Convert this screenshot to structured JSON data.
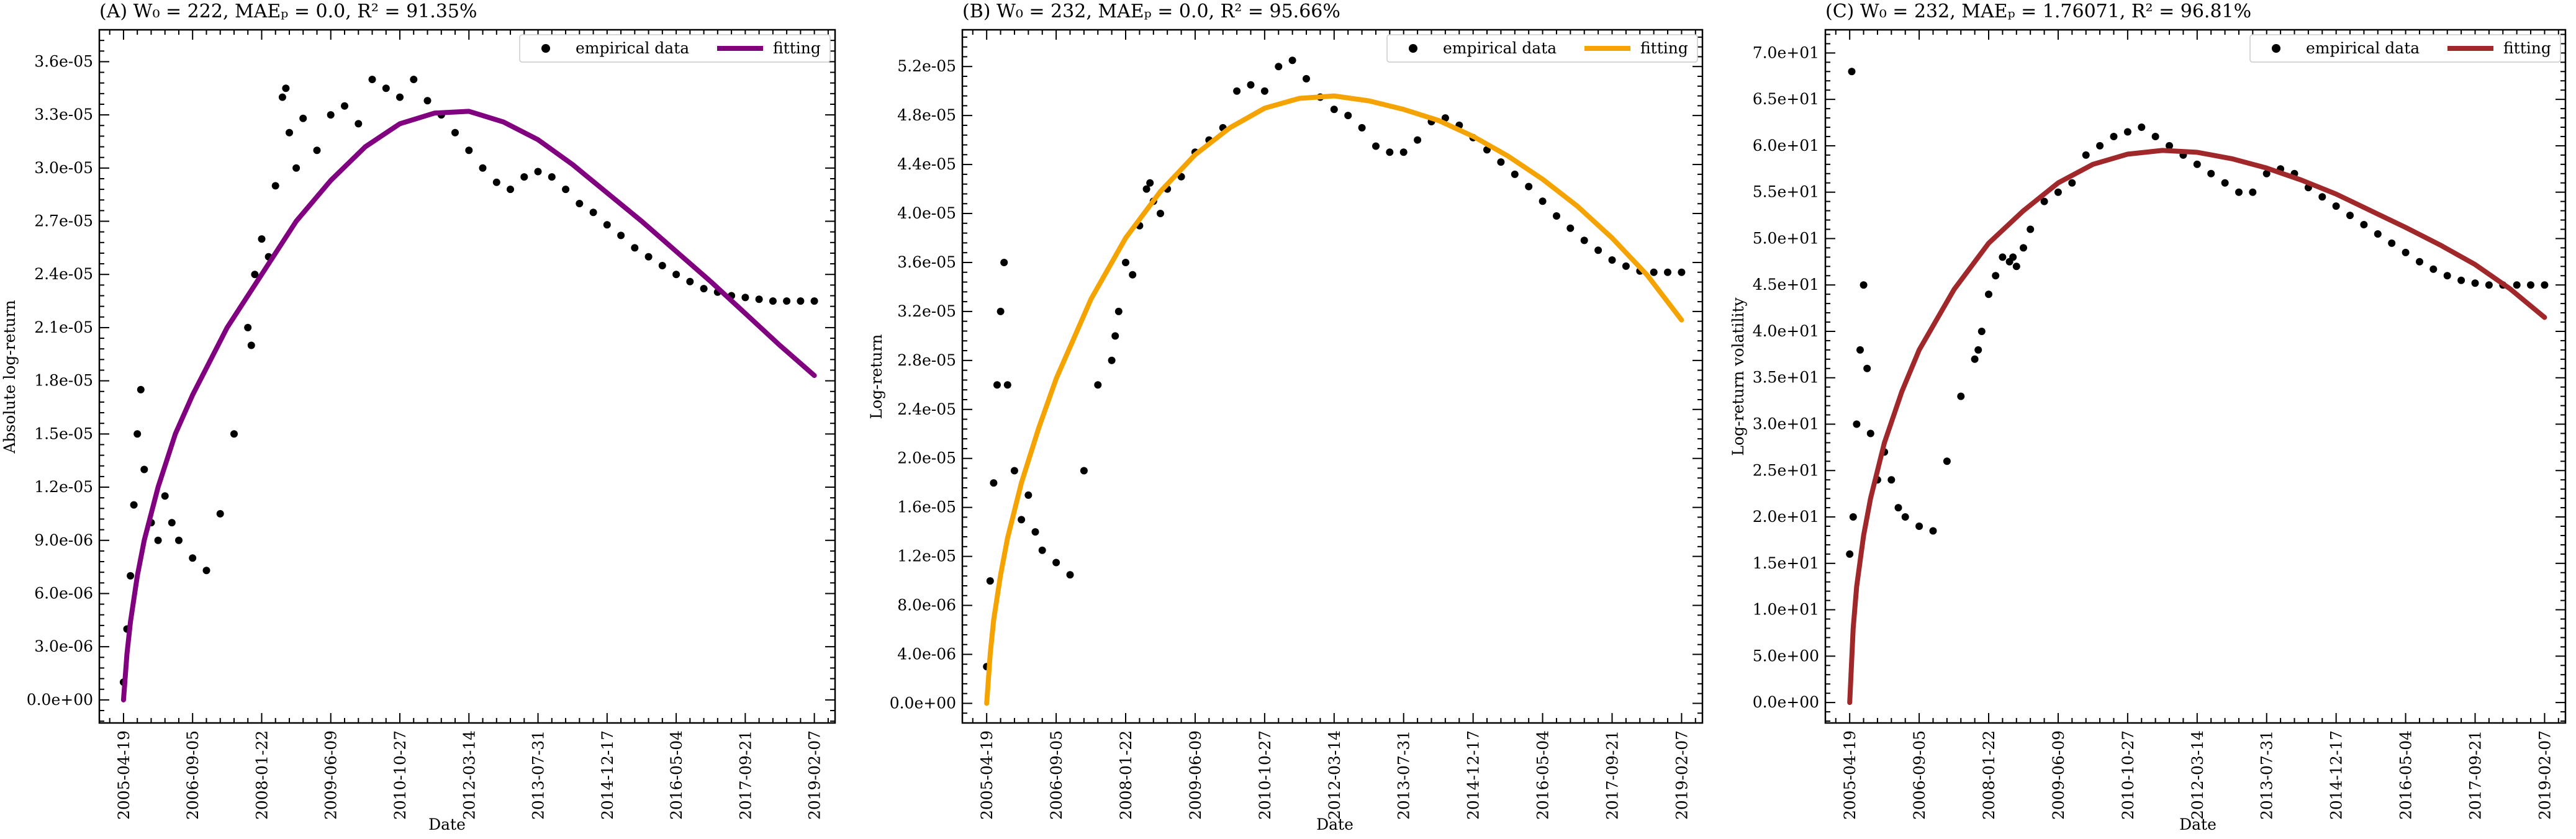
{
  "chart_data": [
    {
      "type": "scatter",
      "title": "(A) W₀ = 222, MAEₚ = 0.0, R² = 91.35%",
      "xlabel": "Date",
      "ylabel": "Absolute log-return",
      "x_ticks": [
        "2005-04-19",
        "2006-09-05",
        "2008-01-22",
        "2009-06-09",
        "2010-10-27",
        "2012-03-14",
        "2013-07-31",
        "2014-12-17",
        "2016-05-04",
        "2017-09-21",
        "2019-02-07"
      ],
      "y_ticks": [
        "0.0e+00",
        "3.0e-06",
        "6.0e-06",
        "9.0e-06",
        "1.2e-05",
        "1.5e-05",
        "1.8e-05",
        "2.1e-05",
        "2.4e-05",
        "2.7e-05",
        "3.0e-05",
        "3.3e-05",
        "3.6e-05"
      ],
      "xlim": [
        -0.35,
        10.3
      ],
      "ylim": [
        -1.3e-06,
        3.78e-05
      ],
      "legend": {
        "position": "top-right",
        "entries": [
          "empirical data",
          "fitting"
        ]
      },
      "fit_color": "#800080",
      "series": [
        {
          "name": "empirical data",
          "kind": "scatter",
          "x": [
            0.0,
            0.05,
            0.1,
            0.15,
            0.2,
            0.25,
            0.3,
            0.4,
            0.5,
            0.6,
            0.7,
            0.8,
            1.0,
            1.2,
            1.4,
            1.6,
            1.8,
            1.85,
            1.9,
            2.0,
            2.1,
            2.2,
            2.3,
            2.35,
            2.4,
            2.5,
            2.6,
            2.8,
            3.0,
            3.2,
            3.4,
            3.6,
            3.8,
            4.0,
            4.2,
            4.4,
            4.6,
            4.8,
            5.0,
            5.2,
            5.4,
            5.6,
            5.8,
            6.0,
            6.2,
            6.4,
            6.6,
            6.8,
            7.0,
            7.2,
            7.4,
            7.6,
            7.8,
            8.0,
            8.2,
            8.4,
            8.6,
            8.8,
            9.0,
            9.2,
            9.4,
            9.6,
            9.8,
            10.0
          ],
          "y": [
            1e-06,
            4e-06,
            7e-06,
            1.1e-05,
            1.5e-05,
            1.75e-05,
            1.3e-05,
            1e-05,
            9e-06,
            1.15e-05,
            1e-05,
            9e-06,
            8e-06,
            7.3e-06,
            1.05e-05,
            1.5e-05,
            2.1e-05,
            2e-05,
            2.4e-05,
            2.6e-05,
            2.5e-05,
            2.9e-05,
            3.4e-05,
            3.45e-05,
            3.2e-05,
            3e-05,
            3.28e-05,
            3.1e-05,
            3.3e-05,
            3.35e-05,
            3.25e-05,
            3.5e-05,
            3.45e-05,
            3.4e-05,
            3.5e-05,
            3.38e-05,
            3.3e-05,
            3.2e-05,
            3.1e-05,
            3e-05,
            2.92e-05,
            2.88e-05,
            2.95e-05,
            2.98e-05,
            2.95e-05,
            2.88e-05,
            2.8e-05,
            2.75e-05,
            2.68e-05,
            2.62e-05,
            2.55e-05,
            2.5e-05,
            2.45e-05,
            2.4e-05,
            2.36e-05,
            2.32e-05,
            2.3e-05,
            2.28e-05,
            2.27e-05,
            2.26e-05,
            2.25e-05,
            2.25e-05,
            2.25e-05,
            2.25e-05
          ]
        },
        {
          "name": "fitting",
          "kind": "line",
          "x": [
            0.0,
            0.05,
            0.1,
            0.2,
            0.3,
            0.5,
            0.75,
            1.0,
            1.5,
            2.0,
            2.5,
            3.0,
            3.5,
            4.0,
            4.5,
            5.0,
            5.5,
            6.0,
            6.5,
            7.0,
            7.5,
            8.0,
            8.5,
            9.0,
            9.5,
            10.0
          ],
          "y": [
            0.0,
            2.6e-06,
            4.4e-06,
            7e-06,
            9e-06,
            1.2e-05,
            1.5e-05,
            1.72e-05,
            2.1e-05,
            2.4e-05,
            2.7e-05,
            2.93e-05,
            3.12e-05,
            3.25e-05,
            3.31e-05,
            3.32e-05,
            3.26e-05,
            3.16e-05,
            3.02e-05,
            2.86e-05,
            2.7e-05,
            2.53e-05,
            2.36e-05,
            2.18e-05,
            2e-05,
            1.83e-05
          ]
        }
      ]
    },
    {
      "type": "scatter",
      "title": "(B) W₀ = 232, MAEₚ = 0.0, R² = 95.66%",
      "xlabel": "Date",
      "ylabel": "Log-return",
      "x_ticks": [
        "2005-04-19",
        "2006-09-05",
        "2008-01-22",
        "2009-06-09",
        "2010-10-27",
        "2012-03-14",
        "2013-07-31",
        "2014-12-17",
        "2016-05-04",
        "2017-09-21",
        "2019-02-07"
      ],
      "y_ticks": [
        "0.0e+00",
        "4.0e-06",
        "8.0e-06",
        "1.2e-05",
        "1.6e-05",
        "2.0e-05",
        "2.4e-05",
        "2.8e-05",
        "3.2e-05",
        "3.6e-05",
        "4.0e-05",
        "4.4e-05",
        "4.8e-05",
        "5.2e-05"
      ],
      "xlim": [
        -0.35,
        10.3
      ],
      "ylim": [
        -1.6e-06,
        5.5e-05
      ],
      "legend": {
        "position": "top-right",
        "entries": [
          "empirical data",
          "fitting"
        ]
      },
      "fit_color": "#f5a300",
      "series": [
        {
          "name": "empirical data",
          "kind": "scatter",
          "x": [
            0.0,
            0.05,
            0.1,
            0.15,
            0.2,
            0.25,
            0.3,
            0.4,
            0.5,
            0.6,
            0.7,
            0.8,
            1.0,
            1.2,
            1.4,
            1.6,
            1.8,
            1.85,
            1.9,
            2.0,
            2.1,
            2.2,
            2.3,
            2.35,
            2.4,
            2.5,
            2.6,
            2.8,
            3.0,
            3.2,
            3.4,
            3.6,
            3.8,
            4.0,
            4.2,
            4.4,
            4.6,
            4.8,
            5.0,
            5.2,
            5.4,
            5.6,
            5.8,
            6.0,
            6.2,
            6.4,
            6.6,
            6.8,
            7.0,
            7.2,
            7.4,
            7.6,
            7.8,
            8.0,
            8.2,
            8.4,
            8.6,
            8.8,
            9.0,
            9.2,
            9.4,
            9.6,
            9.8,
            10.0
          ],
          "y": [
            3e-06,
            1e-05,
            1.8e-05,
            2.6e-05,
            3.2e-05,
            3.6e-05,
            2.6e-05,
            1.9e-05,
            1.5e-05,
            1.7e-05,
            1.4e-05,
            1.25e-05,
            1.15e-05,
            1.05e-05,
            1.9e-05,
            2.6e-05,
            2.8e-05,
            3e-05,
            3.2e-05,
            3.6e-05,
            3.5e-05,
            3.9e-05,
            4.2e-05,
            4.25e-05,
            4.1e-05,
            4e-05,
            4.2e-05,
            4.3e-05,
            4.5e-05,
            4.6e-05,
            4.7e-05,
            5e-05,
            5.05e-05,
            5e-05,
            5.2e-05,
            5.25e-05,
            5.1e-05,
            4.95e-05,
            4.85e-05,
            4.8e-05,
            4.7e-05,
            4.55e-05,
            4.5e-05,
            4.5e-05,
            4.6e-05,
            4.75e-05,
            4.78e-05,
            4.72e-05,
            4.62e-05,
            4.52e-05,
            4.42e-05,
            4.32e-05,
            4.22e-05,
            4.1e-05,
            3.98e-05,
            3.88e-05,
            3.78e-05,
            3.7e-05,
            3.62e-05,
            3.57e-05,
            3.53e-05,
            3.52e-05,
            3.52e-05,
            3.52e-05
          ]
        },
        {
          "name": "fitting",
          "kind": "line",
          "x": [
            0.0,
            0.05,
            0.1,
            0.2,
            0.3,
            0.5,
            0.75,
            1.0,
            1.5,
            2.0,
            2.5,
            3.0,
            3.5,
            4.0,
            4.5,
            5.0,
            5.5,
            6.0,
            6.5,
            7.0,
            7.5,
            8.0,
            8.5,
            9.0,
            9.5,
            10.0
          ],
          "y": [
            0.0,
            4e-06,
            6.8e-06,
            1.05e-05,
            1.35e-05,
            1.8e-05,
            2.25e-05,
            2.65e-05,
            3.3e-05,
            3.8e-05,
            4.18e-05,
            4.48e-05,
            4.7e-05,
            4.86e-05,
            4.94e-05,
            4.96e-05,
            4.92e-05,
            4.85e-05,
            4.76e-05,
            4.63e-05,
            4.47e-05,
            4.28e-05,
            4.06e-05,
            3.8e-05,
            3.5e-05,
            3.13e-05
          ]
        }
      ]
    },
    {
      "type": "scatter",
      "title": "(C) W₀ = 232, MAEₚ = 1.76071, R² = 96.81%",
      "xlabel": "Date",
      "ylabel": "Log-return volatility",
      "x_ticks": [
        "2005-04-19",
        "2006-09-05",
        "2008-01-22",
        "2009-06-09",
        "2010-10-27",
        "2012-03-14",
        "2013-07-31",
        "2014-12-17",
        "2016-05-04",
        "2017-09-21",
        "2019-02-07"
      ],
      "y_ticks": [
        "0.0e+00",
        "5.0e+00",
        "1.0e+01",
        "1.5e+01",
        "2.0e+01",
        "2.5e+01",
        "3.0e+01",
        "3.5e+01",
        "4.0e+01",
        "4.5e+01",
        "5.0e+01",
        "5.5e+01",
        "6.0e+01",
        "6.5e+01",
        "7.0e+01"
      ],
      "xlim": [
        -0.35,
        10.3
      ],
      "ylim": [
        -2.2,
        72.5
      ],
      "legend": {
        "position": "top-right",
        "entries": [
          "empirical data",
          "fitting"
        ]
      },
      "fit_color": "#a0282a",
      "series": [
        {
          "name": "empirical data",
          "kind": "scatter",
          "x": [
            0.0,
            0.03,
            0.05,
            0.1,
            0.15,
            0.2,
            0.25,
            0.3,
            0.4,
            0.5,
            0.6,
            0.7,
            0.8,
            1.0,
            1.2,
            1.4,
            1.6,
            1.8,
            1.85,
            1.9,
            2.0,
            2.1,
            2.2,
            2.3,
            2.35,
            2.4,
            2.5,
            2.6,
            2.8,
            3.0,
            3.2,
            3.4,
            3.6,
            3.8,
            4.0,
            4.2,
            4.4,
            4.6,
            4.8,
            5.0,
            5.2,
            5.4,
            5.6,
            5.8,
            6.0,
            6.2,
            6.4,
            6.6,
            6.8,
            7.0,
            7.2,
            7.4,
            7.6,
            7.8,
            8.0,
            8.2,
            8.4,
            8.6,
            8.8,
            9.0,
            9.2,
            9.4,
            9.6,
            9.8,
            10.0
          ],
          "y": [
            16.0,
            68.0,
            20.0,
            30.0,
            38.0,
            45.0,
            36.0,
            29.0,
            24.0,
            27.0,
            24.0,
            21.0,
            20.0,
            19.0,
            18.5,
            26.0,
            33.0,
            37.0,
            38.0,
            40.0,
            44.0,
            46.0,
            48.0,
            47.5,
            48.0,
            47.0,
            49.0,
            51.0,
            54.0,
            55.0,
            56.0,
            59.0,
            60.0,
            61.0,
            61.5,
            62.0,
            61.0,
            60.0,
            59.0,
            58.0,
            57.0,
            56.0,
            55.0,
            55.0,
            57.0,
            57.5,
            57.0,
            55.5,
            54.5,
            53.5,
            52.5,
            51.5,
            50.5,
            49.5,
            48.5,
            47.5,
            46.7,
            46.0,
            45.5,
            45.2,
            45.0,
            45.0,
            45.0,
            45.0,
            45.0
          ]
        },
        {
          "name": "fitting",
          "kind": "line",
          "x": [
            0.0,
            0.05,
            0.1,
            0.2,
            0.3,
            0.5,
            0.75,
            1.0,
            1.5,
            2.0,
            2.5,
            3.0,
            3.5,
            4.0,
            4.5,
            5.0,
            5.5,
            6.0,
            6.5,
            7.0,
            7.5,
            8.0,
            8.5,
            9.0,
            9.5,
            10.0
          ],
          "y": [
            0.0,
            8.0,
            12.5,
            18.0,
            22.0,
            28.0,
            33.5,
            38.0,
            44.5,
            49.5,
            53.0,
            56.0,
            58.0,
            59.1,
            59.5,
            59.3,
            58.6,
            57.6,
            56.3,
            54.8,
            53.0,
            51.2,
            49.3,
            47.2,
            44.6,
            41.5
          ]
        }
      ]
    }
  ]
}
